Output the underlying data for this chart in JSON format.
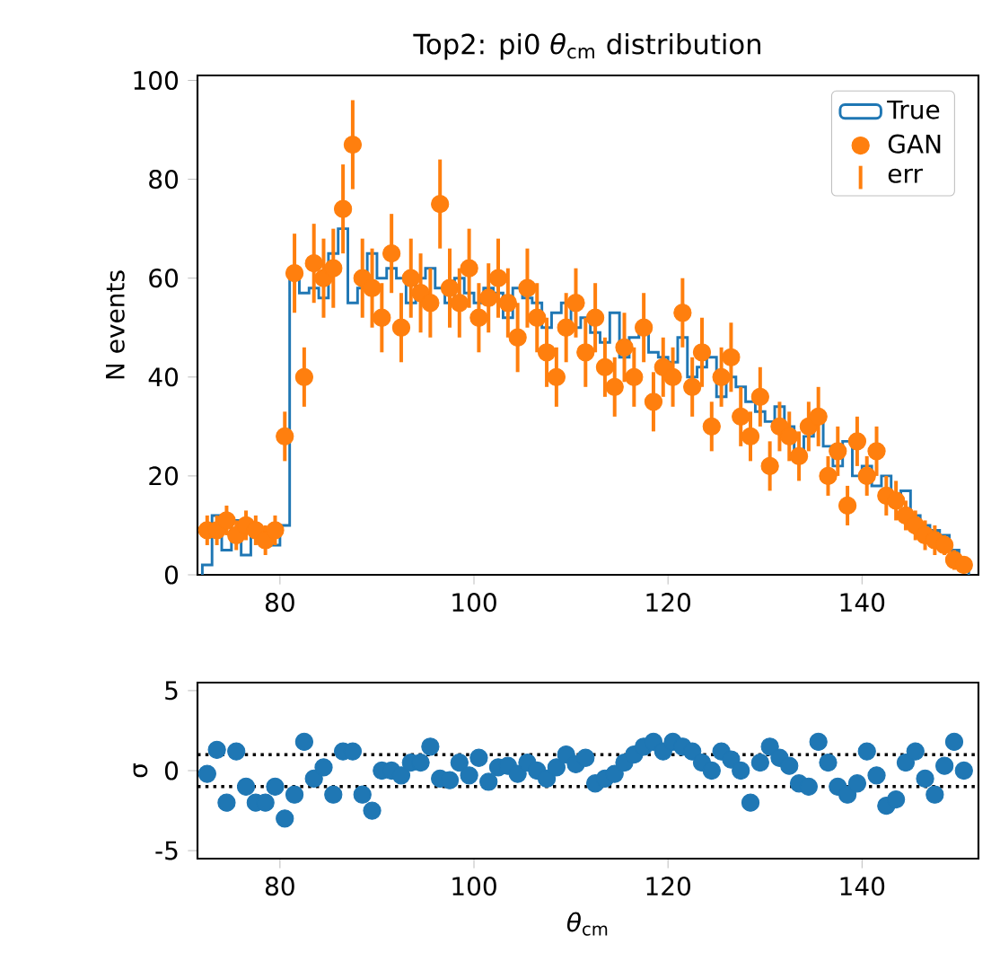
{
  "chart_data": [
    {
      "type": "histogram",
      "title": "Top2: pi0 *θ*$_{cm}$ distribution",
      "ylabel": "N events",
      "bins": [
        72,
        73,
        74,
        75,
        76,
        77,
        78,
        79,
        80,
        81,
        82,
        83,
        84,
        85,
        86,
        87,
        88,
        89,
        90,
        91,
        92,
        93,
        94,
        95,
        96,
        97,
        98,
        99,
        100,
        101,
        102,
        103,
        104,
        105,
        106,
        107,
        108,
        109,
        110,
        111,
        112,
        113,
        114,
        115,
        116,
        117,
        118,
        119,
        120,
        121,
        122,
        123,
        124,
        125,
        126,
        127,
        128,
        129,
        130,
        131,
        132,
        133,
        134,
        135,
        136,
        137,
        138,
        139,
        140,
        141,
        142,
        143,
        144,
        145,
        146,
        147,
        148,
        149,
        150,
        151
      ],
      "xlim": [
        71.5,
        152
      ],
      "ylim": [
        0,
        101
      ],
      "xticks": [
        80,
        100,
        120,
        140
      ],
      "yticks": [
        0,
        20,
        40,
        60,
        80,
        100
      ],
      "legend": "top right",
      "annotations": [
        "err"
      ],
      "series": [
        {
          "name": "True",
          "color": "#1f77b4",
          "values": [
            2,
            12,
            5,
            11,
            4,
            10,
            8,
            6,
            10,
            60,
            57,
            58,
            56,
            65,
            70,
            55,
            58,
            65,
            60,
            62,
            60,
            55,
            60,
            62,
            58,
            55,
            60,
            57,
            55,
            58,
            57,
            52,
            58,
            56,
            55,
            50,
            53,
            55,
            50,
            52,
            49,
            47,
            53,
            44,
            48,
            50,
            45,
            44,
            43,
            48,
            40,
            42,
            44,
            36,
            40,
            38,
            35,
            33,
            31,
            34,
            30,
            25,
            28,
            31,
            26,
            22,
            27,
            20,
            22,
            18,
            20,
            15,
            17,
            12,
            10,
            9,
            8,
            5,
            3
          ]
        },
        {
          "name": "GAN",
          "type": "scatter",
          "marker": "circle",
          "color": "#ff7f0e",
          "x": [
            72.5,
            73.5,
            74.5,
            75.5,
            76.5,
            77.5,
            78.5,
            79.5,
            80.5,
            81.5,
            82.5,
            83.5,
            84.5,
            85.5,
            86.5,
            87.5,
            88.5,
            89.5,
            90.5,
            91.5,
            92.5,
            93.5,
            94.5,
            95.5,
            96.5,
            97.5,
            98.5,
            99.5,
            100.5,
            101.5,
            102.5,
            103.5,
            104.5,
            105.5,
            106.5,
            107.5,
            108.5,
            109.5,
            110.5,
            111.5,
            112.5,
            113.5,
            114.5,
            115.5,
            116.5,
            117.5,
            118.5,
            119.5,
            120.5,
            121.5,
            122.5,
            123.5,
            124.5,
            125.5,
            126.5,
            127.5,
            128.5,
            129.5,
            130.5,
            131.5,
            132.5,
            133.5,
            134.5,
            135.5,
            136.5,
            137.5,
            138.5,
            139.5,
            140.5,
            141.5,
            142.5,
            143.5,
            144.5,
            145.5,
            146.5,
            147.5,
            148.5,
            149.5,
            150.5
          ],
          "values": [
            9,
            9,
            11,
            8,
            10,
            9,
            7,
            9,
            28,
            61,
            40,
            63,
            60,
            62,
            74,
            87,
            60,
            58,
            52,
            65,
            50,
            60,
            57,
            55,
            75,
            58,
            55,
            62,
            52,
            56,
            60,
            55,
            48,
            58,
            52,
            45,
            40,
            50,
            55,
            45,
            52,
            42,
            38,
            46,
            40,
            50,
            35,
            42,
            40,
            53,
            38,
            45,
            30,
            40,
            44,
            32,
            28,
            36,
            22,
            30,
            28,
            24,
            30,
            32,
            20,
            25,
            14,
            27,
            20,
            25,
            16,
            15,
            12,
            10,
            8,
            7,
            6,
            3,
            2
          ],
          "errors": [
            3,
            3,
            3,
            3,
            3,
            3,
            3,
            3,
            5,
            8,
            6,
            8,
            8,
            8,
            9,
            9,
            8,
            8,
            7,
            8,
            7,
            8,
            8,
            7,
            9,
            8,
            7,
            8,
            7,
            7,
            8,
            7,
            7,
            8,
            7,
            7,
            6,
            7,
            7,
            7,
            7,
            6,
            6,
            7,
            6,
            7,
            6,
            6,
            6,
            7,
            6,
            7,
            5,
            6,
            7,
            6,
            5,
            6,
            5,
            5,
            5,
            5,
            5,
            6,
            4,
            5,
            4,
            5,
            4,
            5,
            4,
            4,
            3,
            3,
            3,
            3,
            2,
            2,
            1
          ]
        }
      ]
    },
    {
      "type": "scatter",
      "xlabel": "*θ*$_{cm}$",
      "ylabel": "σ",
      "xlim": [
        71.5,
        152
      ],
      "ylim": [
        -5.5,
        5.5
      ],
      "xticks": [
        80,
        100,
        120,
        140
      ],
      "yticks": [
        -5,
        0,
        5
      ],
      "ref_lines": [
        {
          "axis": "y",
          "value": 1,
          "color": "#000000",
          "line_style": "dotted"
        },
        {
          "axis": "y",
          "value": -1,
          "color": "#000000",
          "line_style": "dotted"
        }
      ],
      "series": [
        {
          "marker": "circle",
          "color": "#1f77b4",
          "x": [
            72.5,
            73.5,
            74.5,
            75.5,
            76.5,
            77.5,
            78.5,
            79.5,
            80.5,
            81.5,
            82.5,
            83.5,
            84.5,
            85.5,
            86.5,
            87.5,
            88.5,
            89.5,
            90.5,
            91.5,
            92.5,
            93.5,
            94.5,
            95.5,
            96.5,
            97.5,
            98.5,
            99.5,
            100.5,
            101.5,
            102.5,
            103.5,
            104.5,
            105.5,
            106.5,
            107.5,
            108.5,
            109.5,
            110.5,
            111.5,
            112.5,
            113.5,
            114.5,
            115.5,
            116.5,
            117.5,
            118.5,
            119.5,
            120.5,
            121.5,
            122.5,
            123.5,
            124.5,
            125.5,
            126.5,
            127.5,
            128.5,
            129.5,
            130.5,
            131.5,
            132.5,
            133.5,
            134.5,
            135.5,
            136.5,
            137.5,
            138.5,
            139.5,
            140.5,
            141.5,
            142.5,
            143.5,
            144.5,
            145.5,
            146.5,
            147.5,
            148.5,
            149.5,
            150.5
          ],
          "values": [
            -0.2,
            1.3,
            -2,
            1.2,
            -1,
            -2,
            -2,
            -1,
            -3,
            -1.5,
            1.8,
            -0.5,
            0.2,
            -1.5,
            1.2,
            1.2,
            -1.5,
            -2.5,
            0,
            0,
            -0.3,
            0.5,
            0.5,
            1.5,
            -0.5,
            -0.6,
            0.5,
            -0.3,
            0.8,
            -0.7,
            0.2,
            0.3,
            -0.2,
            0.5,
            0,
            -0.5,
            0.2,
            1,
            0.4,
            0.8,
            -0.8,
            -0.5,
            -0.2,
            0.5,
            1,
            1.5,
            1.8,
            1.2,
            1.8,
            1.5,
            1.2,
            0.5,
            0,
            1.2,
            0.7,
            0,
            -2,
            0.5,
            1.5,
            0.8,
            0.3,
            -0.8,
            -1,
            1.8,
            0.5,
            -1,
            -1.5,
            -0.8,
            1.2,
            -0.3,
            -2.2,
            -1.8,
            0.5,
            1.2,
            -0.5,
            -1.5,
            0.3,
            1.8,
            0
          ]
        }
      ]
    }
  ]
}
